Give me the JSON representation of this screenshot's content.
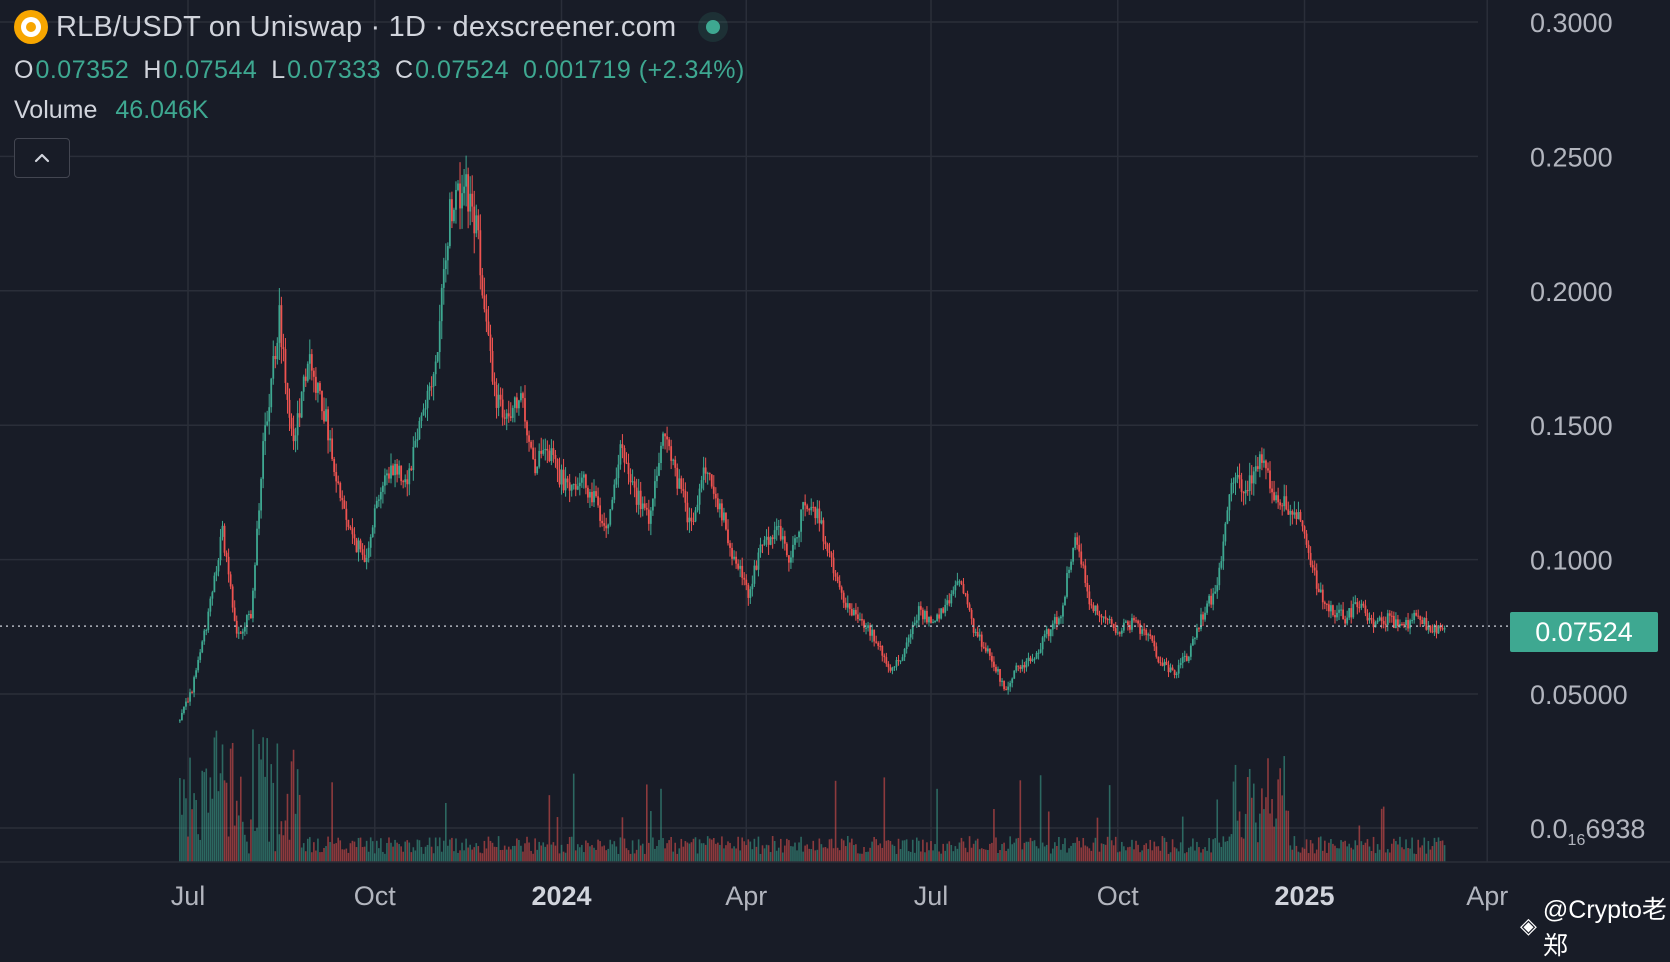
{
  "header": {
    "title": "RLB/USDT on Uniswap · 1D · dexscreener.com",
    "logo_icon": "rollbit-logo-icon",
    "status_icon": "live-dot-icon",
    "ohlc": {
      "o_label": "O",
      "o_value": "0.07352",
      "h_label": "H",
      "h_value": "0.07544",
      "l_label": "L",
      "l_value": "0.07333",
      "c_label": "C",
      "c_value": "0.07524",
      "change": "0.001719 (+2.34%)"
    },
    "volume_label": "Volume",
    "volume_value": "46.046K",
    "collapse_icon": "chevron-up-icon"
  },
  "current_price_tag": "0.07524",
  "watermark": "@Crypto老郑",
  "colors": {
    "background": "#181c27",
    "up": "#3ea891",
    "down": "#ef5350",
    "grid": "#2a2e39",
    "text": "#b2b5be"
  },
  "chart_data": {
    "type": "candlestick",
    "title": "RLB/USDT on Uniswap · 1D · dexscreener.com",
    "y_ticks": [
      "0.3000",
      "0.2500",
      "0.2000",
      "0.1500",
      "0.1000",
      "0.05000"
    ],
    "y_tick_values": [
      0.3,
      0.25,
      0.2,
      0.15,
      0.1,
      0.05
    ],
    "y_bottom_tick_prefix": "0.0",
    "y_bottom_tick_sub": "16",
    "y_bottom_tick_suffix": "6938",
    "ylim": [
      0,
      0.3
    ],
    "x_ticks": [
      {
        "label": "Jul",
        "bold": false,
        "date": "2023-07-01"
      },
      {
        "label": "Oct",
        "bold": false,
        "date": "2023-10-01"
      },
      {
        "label": "2024",
        "bold": true,
        "date": "2024-01-01"
      },
      {
        "label": "Apr",
        "bold": false,
        "date": "2024-04-01"
      },
      {
        "label": "Jul",
        "bold": false,
        "date": "2024-07-01"
      },
      {
        "label": "Oct",
        "bold": false,
        "date": "2024-10-01"
      },
      {
        "label": "2025",
        "bold": true,
        "date": "2025-01-01"
      },
      {
        "label": "Apr",
        "bold": false,
        "date": "2025-04-01"
      }
    ],
    "current_price": 0.07524,
    "close_path": {
      "dates": [
        "2023-06-27",
        "2023-07-03",
        "2023-07-10",
        "2023-07-18",
        "2023-07-25",
        "2023-08-01",
        "2023-08-08",
        "2023-08-15",
        "2023-08-22",
        "2023-08-29",
        "2023-09-05",
        "2023-09-12",
        "2023-09-19",
        "2023-09-26",
        "2023-10-03",
        "2023-10-10",
        "2023-10-17",
        "2023-10-24",
        "2023-10-31",
        "2023-11-07",
        "2023-11-14",
        "2023-11-21",
        "2023-11-28",
        "2023-12-05",
        "2023-12-12",
        "2023-12-19",
        "2023-12-26",
        "2024-01-02",
        "2024-01-09",
        "2024-01-16",
        "2024-01-23",
        "2024-01-30",
        "2024-02-06",
        "2024-02-13",
        "2024-02-20",
        "2024-02-27",
        "2024-03-05",
        "2024-03-12",
        "2024-03-19",
        "2024-03-26",
        "2024-04-02",
        "2024-04-09",
        "2024-04-16",
        "2024-04-23",
        "2024-04-30",
        "2024-05-07",
        "2024-05-14",
        "2024-05-21",
        "2024-05-28",
        "2024-06-04",
        "2024-06-11",
        "2024-06-18",
        "2024-06-25",
        "2024-07-02",
        "2024-07-09",
        "2024-07-16",
        "2024-07-23",
        "2024-07-30",
        "2024-08-06",
        "2024-08-13",
        "2024-08-20",
        "2024-08-27",
        "2024-09-03",
        "2024-09-10",
        "2024-09-17",
        "2024-09-24",
        "2024-10-01",
        "2024-10-08",
        "2024-10-15",
        "2024-10-22",
        "2024-10-29",
        "2024-11-05",
        "2024-11-12",
        "2024-11-19",
        "2024-11-26",
        "2024-12-03",
        "2024-12-10",
        "2024-12-17",
        "2024-12-24",
        "2024-12-31",
        "2025-01-07",
        "2025-01-14",
        "2025-01-21",
        "2025-01-28",
        "2025-02-04",
        "2025-02-11",
        "2025-02-18",
        "2025-02-25",
        "2025-03-04",
        "2025-03-11"
      ],
      "values": [
        0.04,
        0.052,
        0.075,
        0.11,
        0.072,
        0.08,
        0.15,
        0.19,
        0.14,
        0.175,
        0.16,
        0.13,
        0.11,
        0.1,
        0.125,
        0.135,
        0.13,
        0.155,
        0.17,
        0.23,
        0.24,
        0.22,
        0.165,
        0.15,
        0.16,
        0.135,
        0.14,
        0.128,
        0.13,
        0.125,
        0.112,
        0.14,
        0.125,
        0.115,
        0.148,
        0.13,
        0.112,
        0.135,
        0.12,
        0.1,
        0.088,
        0.105,
        0.112,
        0.1,
        0.123,
        0.115,
        0.095,
        0.082,
        0.078,
        0.07,
        0.058,
        0.066,
        0.082,
        0.075,
        0.084,
        0.092,
        0.072,
        0.065,
        0.052,
        0.06,
        0.063,
        0.072,
        0.08,
        0.11,
        0.085,
        0.078,
        0.074,
        0.076,
        0.073,
        0.062,
        0.058,
        0.065,
        0.08,
        0.09,
        0.13,
        0.125,
        0.14,
        0.125,
        0.12,
        0.115,
        0.09,
        0.082,
        0.078,
        0.084,
        0.076,
        0.078,
        0.074,
        0.08,
        0.074,
        0.07524
      ]
    },
    "volume": {
      "label": "Volume",
      "latest": "46.046K"
    }
  }
}
